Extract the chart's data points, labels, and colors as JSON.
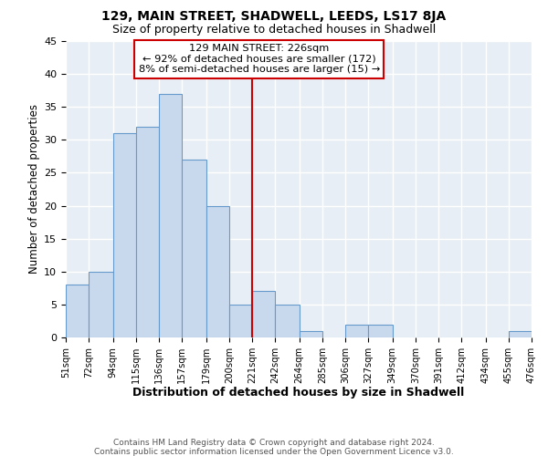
{
  "title": "129, MAIN STREET, SHADWELL, LEEDS, LS17 8JA",
  "subtitle": "Size of property relative to detached houses in Shadwell",
  "xlabel": "Distribution of detached houses by size in Shadwell",
  "ylabel": "Number of detached properties",
  "bar_color": "#c9d9ed",
  "bar_edge_color": "#6699cc",
  "background_color": "#e8eef5",
  "axes_background": "#e8eef5",
  "grid_color": "#ffffff",
  "vline_x": 221,
  "vline_color": "#cc0000",
  "bin_edges": [
    51,
    72,
    94,
    115,
    136,
    157,
    179,
    200,
    221,
    242,
    264,
    285,
    306,
    327,
    349,
    370,
    391,
    412,
    434,
    455,
    476
  ],
  "bin_labels": [
    "51sqm",
    "72sqm",
    "94sqm",
    "115sqm",
    "136sqm",
    "157sqm",
    "179sqm",
    "200sqm",
    "221sqm",
    "242sqm",
    "264sqm",
    "285sqm",
    "306sqm",
    "327sqm",
    "349sqm",
    "370sqm",
    "391sqm",
    "412sqm",
    "434sqm",
    "455sqm",
    "476sqm"
  ],
  "counts": [
    8,
    10,
    31,
    32,
    37,
    27,
    20,
    5,
    7,
    5,
    1,
    0,
    2,
    2,
    0,
    0,
    0,
    0,
    0,
    1
  ],
  "ylim": [
    0,
    45
  ],
  "yticks": [
    0,
    5,
    10,
    15,
    20,
    25,
    30,
    35,
    40,
    45
  ],
  "annotation_title": "129 MAIN STREET: 226sqm",
  "annotation_line1": "← 92% of detached houses are smaller (172)",
  "annotation_line2": "8% of semi-detached houses are larger (15) →",
  "annotation_box_color": "#ffffff",
  "annotation_box_edge": "#cc0000",
  "footnote1": "Contains HM Land Registry data © Crown copyright and database right 2024.",
  "footnote2": "Contains public sector information licensed under the Open Government Licence v3.0."
}
